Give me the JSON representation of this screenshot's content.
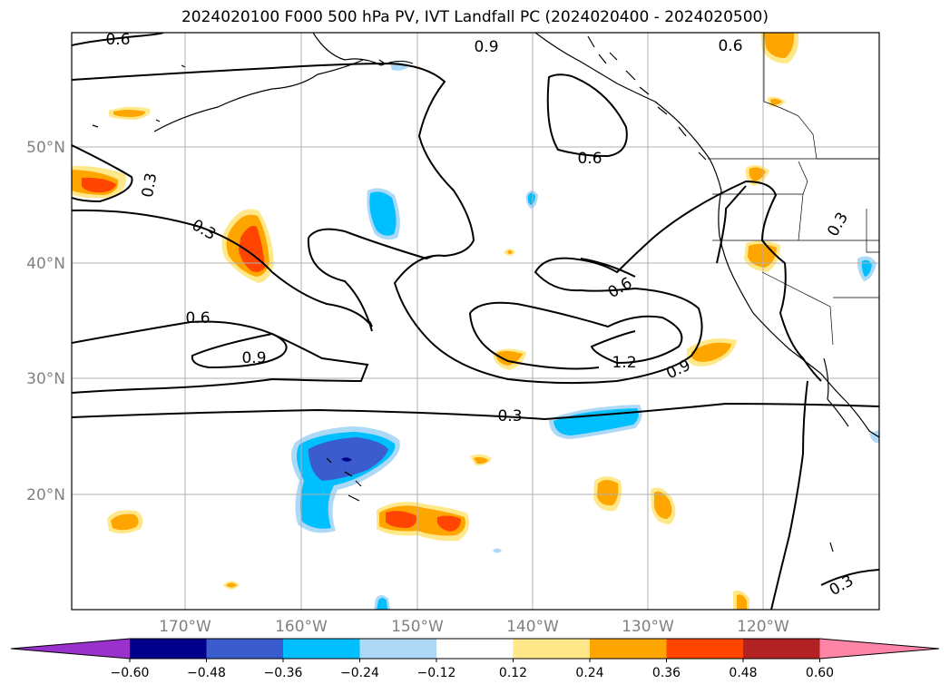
{
  "title": "2024020100 F000 500 hPa PV, IVT Landfall PC (2024020400 - 2024020500)",
  "lat_labels": [
    "50°N",
    "40°N",
    "30°N",
    "20°N"
  ],
  "lon_labels": [
    "170°W",
    "160°W",
    "150°W",
    "140°W",
    "130°W",
    "120°W"
  ],
  "contour_labels": [
    "0.6",
    "0.9",
    "0.6",
    "0.3",
    "0.3",
    "0.6",
    "0.6",
    "0.9",
    "0.6",
    "1.2",
    "0.9",
    "0.3",
    "0.3",
    "0.3"
  ],
  "colorbar": {
    "ticks": [
      "−0.60",
      "−0.48",
      "−0.36",
      "−0.24",
      "−0.12",
      "0.12",
      "0.24",
      "0.36",
      "0.48",
      "0.60"
    ],
    "colors": [
      "#9932cc",
      "#00008b",
      "#3a5ccc",
      "#00bfff",
      "#add8f6",
      "#ffffff",
      "#ffe88a",
      "#ffa500",
      "#ff4500",
      "#b22222",
      "#ff85a8"
    ]
  },
  "colors": {
    "pos1": "#ffe88a",
    "pos2": "#ffa500",
    "pos3": "#ff4500",
    "neg1": "#add8f6",
    "neg2": "#00bfff",
    "neg3": "#3a5ccc",
    "neg4": "#00008b"
  }
}
